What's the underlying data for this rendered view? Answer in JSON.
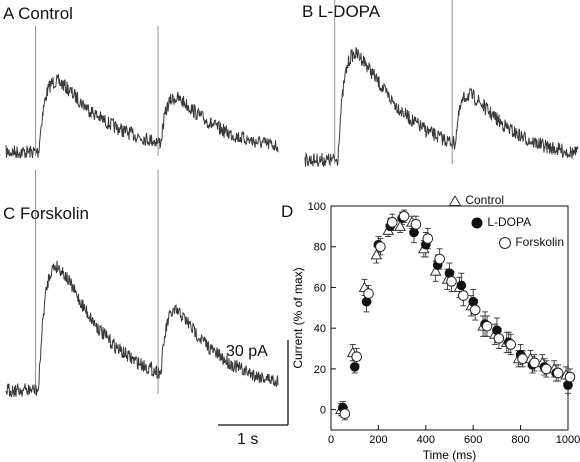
{
  "panels": {
    "a": "A Control",
    "b": "B  L-DOPA",
    "c": "C  Forskolin",
    "d": "D"
  },
  "scale_bar": {
    "current": "30 pA",
    "time": "1 s"
  },
  "chart_data": {
    "type": "scatter",
    "xlabel": "Time (ms)",
    "ylabel": "Current (% of max)",
    "xlim": [
      0,
      1000
    ],
    "ylim": [
      -10,
      100
    ],
    "xticks": [
      "0",
      "200",
      "400",
      "600",
      "800",
      "1000"
    ],
    "yticks": [
      "0",
      "20",
      "40",
      "60",
      "80",
      "100"
    ],
    "legend_position": "top-right",
    "grid": false,
    "series": [
      {
        "name": "Control",
        "marker": "triangle",
        "x": [
          50,
          100,
          150,
          200,
          250,
          300,
          350,
          400,
          450,
          500,
          550,
          600,
          650,
          700,
          750,
          800,
          850,
          900,
          950,
          1000
        ],
        "y": [
          0,
          28,
          60,
          76,
          88,
          90,
          92,
          79,
          68,
          64,
          60,
          51,
          41,
          37,
          33,
          25,
          25,
          23,
          20,
          17
        ],
        "err": [
          3,
          4,
          4,
          4,
          3,
          3,
          3,
          4,
          5,
          5,
          5,
          5,
          5,
          5,
          5,
          4,
          4,
          4,
          4,
          4
        ]
      },
      {
        "name": "L-DOPA",
        "marker": "filled-circle",
        "x": [
          50,
          100,
          150,
          200,
          250,
          300,
          350,
          400,
          450,
          500,
          550,
          600,
          650,
          700,
          750,
          800,
          850,
          900,
          950,
          1000
        ],
        "y": [
          1,
          21,
          53,
          81,
          90,
          94,
          87,
          81,
          71,
          67,
          61,
          53,
          42,
          39,
          33,
          27,
          22,
          21,
          18,
          12
        ],
        "err": [
          3,
          3,
          5,
          4,
          4,
          3,
          5,
          6,
          5,
          5,
          6,
          6,
          6,
          6,
          5,
          5,
          4,
          4,
          4,
          4
        ]
      },
      {
        "name": "Forskolin",
        "marker": "open-circle",
        "x": [
          50,
          100,
          150,
          200,
          250,
          300,
          350,
          400,
          450,
          500,
          550,
          600,
          650,
          700,
          750,
          800,
          850,
          900,
          950,
          1000
        ],
        "y": [
          -2,
          26,
          57,
          80,
          92,
          95,
          91,
          84,
          74,
          63,
          56,
          49,
          41,
          35,
          32,
          25,
          23,
          20,
          18,
          16
        ],
        "err": [
          3,
          4,
          4,
          4,
          4,
          3,
          4,
          5,
          5,
          5,
          5,
          5,
          5,
          5,
          5,
          4,
          4,
          4,
          4,
          4
        ]
      }
    ]
  }
}
